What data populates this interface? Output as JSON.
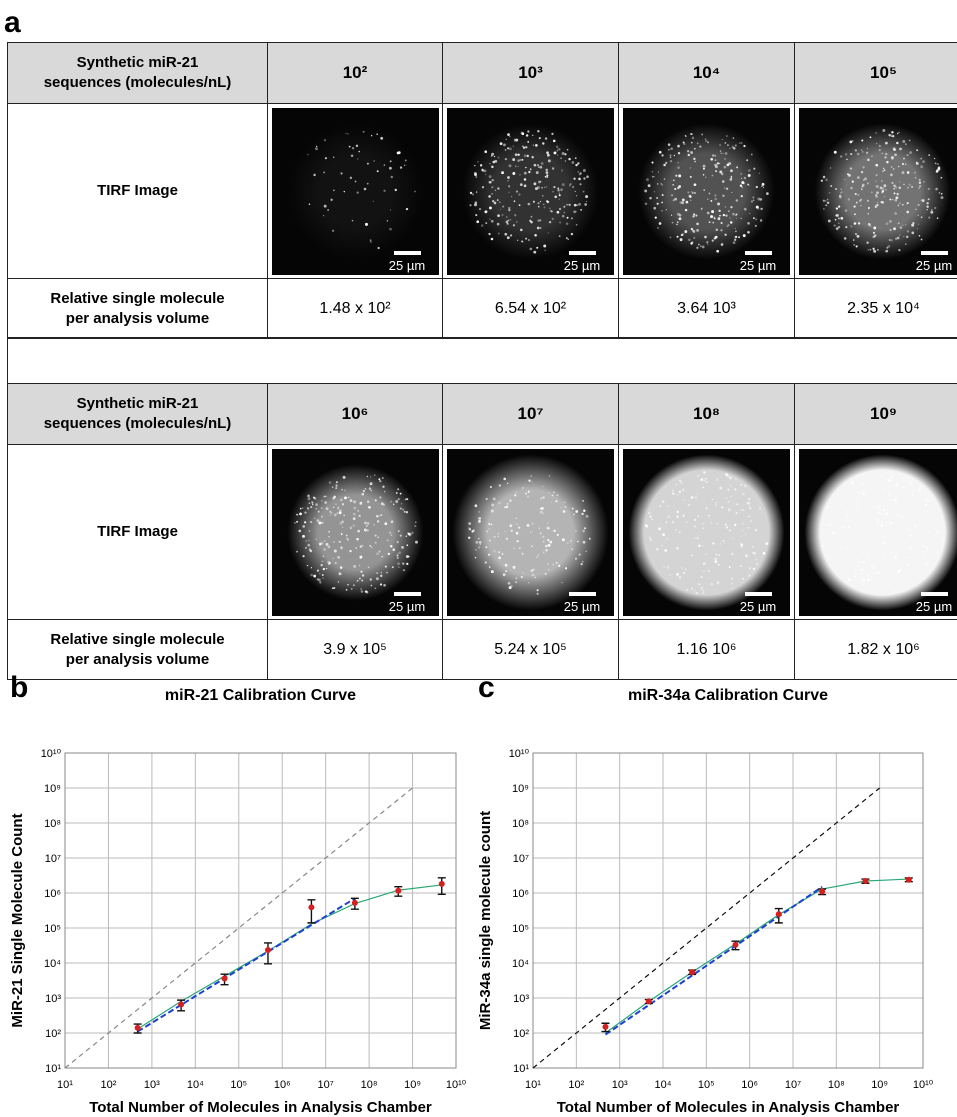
{
  "panel_a": {
    "label": "a",
    "scale_bar": "25 µm",
    "blocks": [
      {
        "row_headers": [
          "Synthetic miR-21 sequences (molecules/nL)",
          "TIRF Image",
          "Relative single molecule per analysis volume"
        ],
        "concentrations": [
          "10²",
          "10³",
          "10⁴",
          "10⁵"
        ],
        "counts": [
          "1.48 x 10²",
          "6.54 x 10²",
          "3.64 10³",
          "2.35 x 10⁴"
        ]
      },
      {
        "row_headers": [
          "Synthetic miR-21 sequences (molecules/nL)",
          "TIRF Image",
          "Relative single molecule per analysis volume"
        ],
        "concentrations": [
          "10⁶",
          "10⁷",
          "10⁸",
          "10⁹"
        ],
        "counts": [
          "3.9 x 10⁵",
          "5.24 x 10⁵",
          "1.16 10⁶",
          "1.82 x 10⁶"
        ]
      }
    ]
  },
  "chart_data": [
    {
      "type": "scatter",
      "panel_label": "b",
      "title": "miR-21 Calibration Curve",
      "x_label": "Total Number of Molecules in Analysis Chamber",
      "y_label": "MiR-21 Single Molecule Count",
      "xscale": "log",
      "yscale": "log",
      "grid": true,
      "xlim": [
        10,
        10000000000
      ],
      "ylim": [
        10,
        10000000000
      ],
      "xticks": [
        {
          "value": 10,
          "label": "10¹"
        },
        {
          "value": 100,
          "label": "10²"
        },
        {
          "value": 1000,
          "label": "10³"
        },
        {
          "value": 10000,
          "label": "10⁴"
        },
        {
          "value": 100000,
          "label": "10⁵"
        },
        {
          "value": 1000000,
          "label": "10⁶"
        },
        {
          "value": 10000000,
          "label": "10⁷"
        },
        {
          "value": 100000000,
          "label": "10⁸"
        },
        {
          "value": 1000000000,
          "label": "10⁹"
        },
        {
          "value": 10000000000,
          "label": "10¹⁰"
        }
      ],
      "yticks": [
        {
          "value": 10,
          "label": "10¹"
        },
        {
          "value": 100,
          "label": "10²"
        },
        {
          "value": 1000,
          "label": "10³"
        },
        {
          "value": 10000,
          "label": "10⁴"
        },
        {
          "value": 100000,
          "label": "10⁵"
        },
        {
          "value": 1000000,
          "label": "10⁶"
        },
        {
          "value": 10000000,
          "label": "10⁷"
        },
        {
          "value": 100000000,
          "label": "10⁸"
        },
        {
          "value": 1000000000,
          "label": "10⁹"
        },
        {
          "value": 10000000000,
          "label": "10¹⁰"
        }
      ],
      "points": {
        "color": "#d62020",
        "x": [
          470,
          4700,
          47000,
          470000,
          4700000,
          47000000,
          470000000,
          4700000000
        ],
        "y": [
          140,
          650,
          3600,
          23500,
          390000,
          524000,
          1160000,
          1820000
        ],
        "errors": [
          40,
          220,
          1200,
          14000,
          250000,
          180000,
          350000,
          900000
        ]
      },
      "lines": [
        {
          "color": "#2aa876",
          "dash": false,
          "x": [
            470,
            4700,
            47000,
            470000,
            4700000,
            47000000,
            470000000,
            4700000000
          ],
          "y": [
            130,
            800,
            4200,
            22000,
            130000,
            500000,
            1200000,
            1700000
          ]
        },
        {
          "color": "#1f3fd6",
          "dash": true,
          "x": [
            470,
            47000000
          ],
          "y": [
            110,
            700000
          ]
        },
        {
          "color": "#888888",
          "dash": true,
          "x": [
            10,
            1000000000
          ],
          "y": [
            10,
            1000000000
          ]
        }
      ]
    },
    {
      "type": "scatter",
      "panel_label": "c",
      "title": "miR-34a Calibration Curve",
      "x_label": "Total Number of Molecules in Analysis Chamber",
      "y_label": "MiR-34a single molecule count",
      "xscale": "log",
      "yscale": "log",
      "grid": true,
      "xlim": [
        10,
        10000000000
      ],
      "ylim": [
        10,
        10000000000
      ],
      "xticks": [
        {
          "value": 10,
          "label": "10¹"
        },
        {
          "value": 100,
          "label": "10²"
        },
        {
          "value": 1000,
          "label": "10³"
        },
        {
          "value": 10000,
          "label": "10⁴"
        },
        {
          "value": 100000,
          "label": "10⁵"
        },
        {
          "value": 1000000,
          "label": "10⁶"
        },
        {
          "value": 10000000,
          "label": "10⁷"
        },
        {
          "value": 100000000,
          "label": "10⁸"
        },
        {
          "value": 1000000000,
          "label": "10⁹"
        },
        {
          "value": 10000000000,
          "label": "10¹⁰"
        }
      ],
      "yticks": [
        {
          "value": 10,
          "label": "10¹"
        },
        {
          "value": 100,
          "label": "10²"
        },
        {
          "value": 1000,
          "label": "10³"
        },
        {
          "value": 10000,
          "label": "10⁴"
        },
        {
          "value": 100000,
          "label": "10⁵"
        },
        {
          "value": 1000000,
          "label": "10⁶"
        },
        {
          "value": 10000000,
          "label": "10⁷"
        },
        {
          "value": 100000000,
          "label": "10⁸"
        },
        {
          "value": 1000000000,
          "label": "10⁹"
        },
        {
          "value": 10000000000,
          "label": "10¹⁰"
        }
      ],
      "points": {
        "color": "#d62020",
        "x": [
          470,
          4700,
          47000,
          470000,
          4700000,
          47000000,
          470000000,
          4700000000
        ],
        "y": [
          150,
          800,
          5500,
          33000,
          250000,
          1100000,
          2200000,
          2400000
        ],
        "errors": [
          40,
          100,
          800,
          9000,
          110000,
          200000,
          300000,
          300000
        ]
      },
      "lines": [
        {
          "color": "#2aa876",
          "dash": false,
          "x": [
            470,
            4700,
            47000,
            470000,
            4700000,
            47000000,
            470000000,
            4700000000
          ],
          "y": [
            100,
            800,
            5500,
            35000,
            240000,
            1300000,
            2200000,
            2500000
          ]
        },
        {
          "color": "#1f3fd6",
          "dash": true,
          "x": [
            470,
            47000000
          ],
          "y": [
            90,
            1500000
          ]
        },
        {
          "color": "#111111",
          "dash": true,
          "x": [
            10,
            1000000000
          ],
          "y": [
            10,
            1000000000
          ]
        }
      ]
    }
  ]
}
